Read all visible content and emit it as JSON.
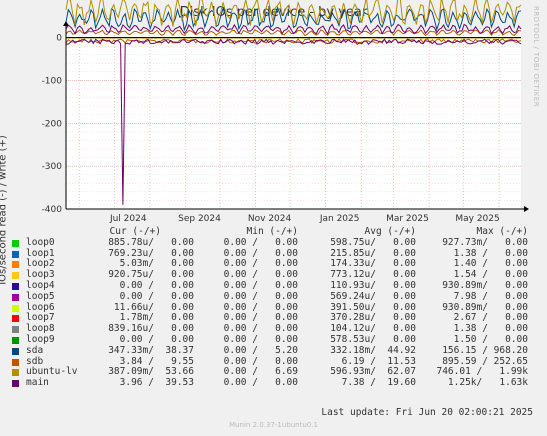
{
  "title": "Disk IOs per device - by year",
  "side_label": "RRDTOOL / TOBI OETIKER",
  "footer": "Munin 2.0.37-1ubuntu0.1",
  "last_update": "Last update: Fri Jun 20 02:00:21 2025",
  "legend_header": {
    "cur": "Cur (-/+)",
    "min": "Min (-/+)",
    "avg": "Avg (-/+)",
    "max": "Max (-/+)"
  },
  "chart_data": {
    "type": "line",
    "title": "Disk IOs per device - by year",
    "ylabel": "IOs/second read (-) / write (+)",
    "ylim": [
      -400,
      20
    ],
    "yticks": [
      "0",
      "-100",
      "-200",
      "-300",
      "-400"
    ],
    "ytick_values": [
      0,
      -100,
      -200,
      -300,
      -400
    ],
    "xticks": [
      "Jul 2024",
      "Sep 2024",
      "Nov 2024",
      "Jan 2025",
      "Mar 2025",
      "May 2025"
    ],
    "xrange": [
      "2024-05-20",
      "2025-06-20"
    ],
    "xtick_dates": [
      "2024-07-01",
      "2024-09-01",
      "2024-11-01",
      "2025-01-01",
      "2025-03-01",
      "2025-05-01"
    ],
    "grid": true,
    "series": [
      {
        "name": "loop0",
        "color": "#00cc00",
        "write_avg": 0.0,
        "read_avg": 0.0006
      },
      {
        "name": "loop1",
        "color": "#0066b3",
        "write_avg": 0.0,
        "read_avg": 0.0002
      },
      {
        "name": "loop2",
        "color": "#ff8000",
        "write_avg": 0.0,
        "read_avg": 0.00017
      },
      {
        "name": "loop3",
        "color": "#ffcc00",
        "write_avg": 0.0,
        "read_avg": 0.00077
      },
      {
        "name": "loop4",
        "color": "#330099",
        "write_avg": 0.0,
        "read_avg": 0.0001
      },
      {
        "name": "loop5",
        "color": "#990099",
        "write_avg": 0.0,
        "read_avg": 0.00057
      },
      {
        "name": "loop6",
        "color": "#ccff00",
        "write_avg": 0.0,
        "read_avg": 0.00039
      },
      {
        "name": "loop7",
        "color": "#ff0000",
        "write_avg": 0.0,
        "read_avg": 0.00037
      },
      {
        "name": "loop8",
        "color": "#808080",
        "write_avg": 0.0,
        "read_avg": 0.0001
      },
      {
        "name": "loop9",
        "color": "#008f00",
        "write_avg": 0.0,
        "read_avg": 0.00058
      },
      {
        "name": "sda",
        "color": "#00487d",
        "write_avg": 44.92,
        "read_avg": 0.33
      },
      {
        "name": "sdb",
        "color": "#b35a00",
        "write_avg": 11.53,
        "read_avg": 6.19
      },
      {
        "name": "ubuntu-lv",
        "color": "#b38f00",
        "write_avg": 62.07,
        "read_avg": 0.6
      },
      {
        "name": "main",
        "color": "#6b006b",
        "write_avg": 19.6,
        "read_avg": 7.38,
        "read_min_spike": -390
      }
    ]
  },
  "legend_rows": [
    {
      "name": "loop0",
      "color": "#00cc00",
      "cur": "885.78u/   0.00",
      "min": "0.00 /   0.00",
      "avg": "598.75u/   0.00",
      "max": "927.73m/   0.00"
    },
    {
      "name": "loop1",
      "color": "#0066b3",
      "cur": "769.23u/   0.00",
      "min": "0.00 /   0.00",
      "avg": "215.85u/   0.00",
      "max": "1.38 /   0.00"
    },
    {
      "name": "loop2",
      "color": "#ff8000",
      "cur": "5.03m/   0.00",
      "min": "0.00 /   0.00",
      "avg": "174.33u/   0.00",
      "max": "1.40 /   0.00"
    },
    {
      "name": "loop3",
      "color": "#ffcc00",
      "cur": "920.75u/   0.00",
      "min": "0.00 /   0.00",
      "avg": "773.12u/   0.00",
      "max": "1.54 /   0.00"
    },
    {
      "name": "loop4",
      "color": "#330099",
      "cur": "0.00 /   0.00",
      "min": "0.00 /   0.00",
      "avg": "110.93u/   0.00",
      "max": "930.89m/   0.00"
    },
    {
      "name": "loop5",
      "color": "#990099",
      "cur": "0.00 /   0.00",
      "min": "0.00 /   0.00",
      "avg": "569.24u/   0.00",
      "max": "7.98 /   0.00"
    },
    {
      "name": "loop6",
      "color": "#ccff00",
      "cur": "11.66u/   0.00",
      "min": "0.00 /   0.00",
      "avg": "391.50u/   0.00",
      "max": "930.89m/   0.00"
    },
    {
      "name": "loop7",
      "color": "#ff0000",
      "cur": "1.78m/   0.00",
      "min": "0.00 /   0.00",
      "avg": "370.28u/   0.00",
      "max": "2.67 /   0.00"
    },
    {
      "name": "loop8",
      "color": "#808080",
      "cur": "839.16u/   0.00",
      "min": "0.00 /   0.00",
      "avg": "104.12u/   0.00",
      "max": "1.38 /   0.00"
    },
    {
      "name": "loop9",
      "color": "#008f00",
      "cur": "0.00 /   0.00",
      "min": "0.00 /   0.00",
      "avg": "578.53u/   0.00",
      "max": "1.50 /   0.00"
    },
    {
      "name": "sda",
      "color": "#00487d",
      "cur": "347.33m/  38.37",
      "min": "0.00 /   5.20",
      "avg": "332.18m/  44.92",
      "max": "156.15 / 968.20"
    },
    {
      "name": "sdb",
      "color": "#b35a00",
      "cur": "3.84 /   9.55",
      "min": "0.00 /   0.00",
      "avg": "6.19 /  11.53",
      "max": "895.59 / 252.65"
    },
    {
      "name": "ubuntu-lv",
      "color": "#b38f00",
      "cur": "387.09m/  53.66",
      "min": "0.00 /   6.69",
      "avg": "596.93m/  62.07",
      "max": "746.01 /   1.99k"
    },
    {
      "name": "main",
      "color": "#6b006b",
      "cur": "3.96 /  39.53",
      "min": "0.00 /   0.00",
      "avg": "7.38 /  19.60",
      "max": "1.25k/   1.63k"
    }
  ]
}
